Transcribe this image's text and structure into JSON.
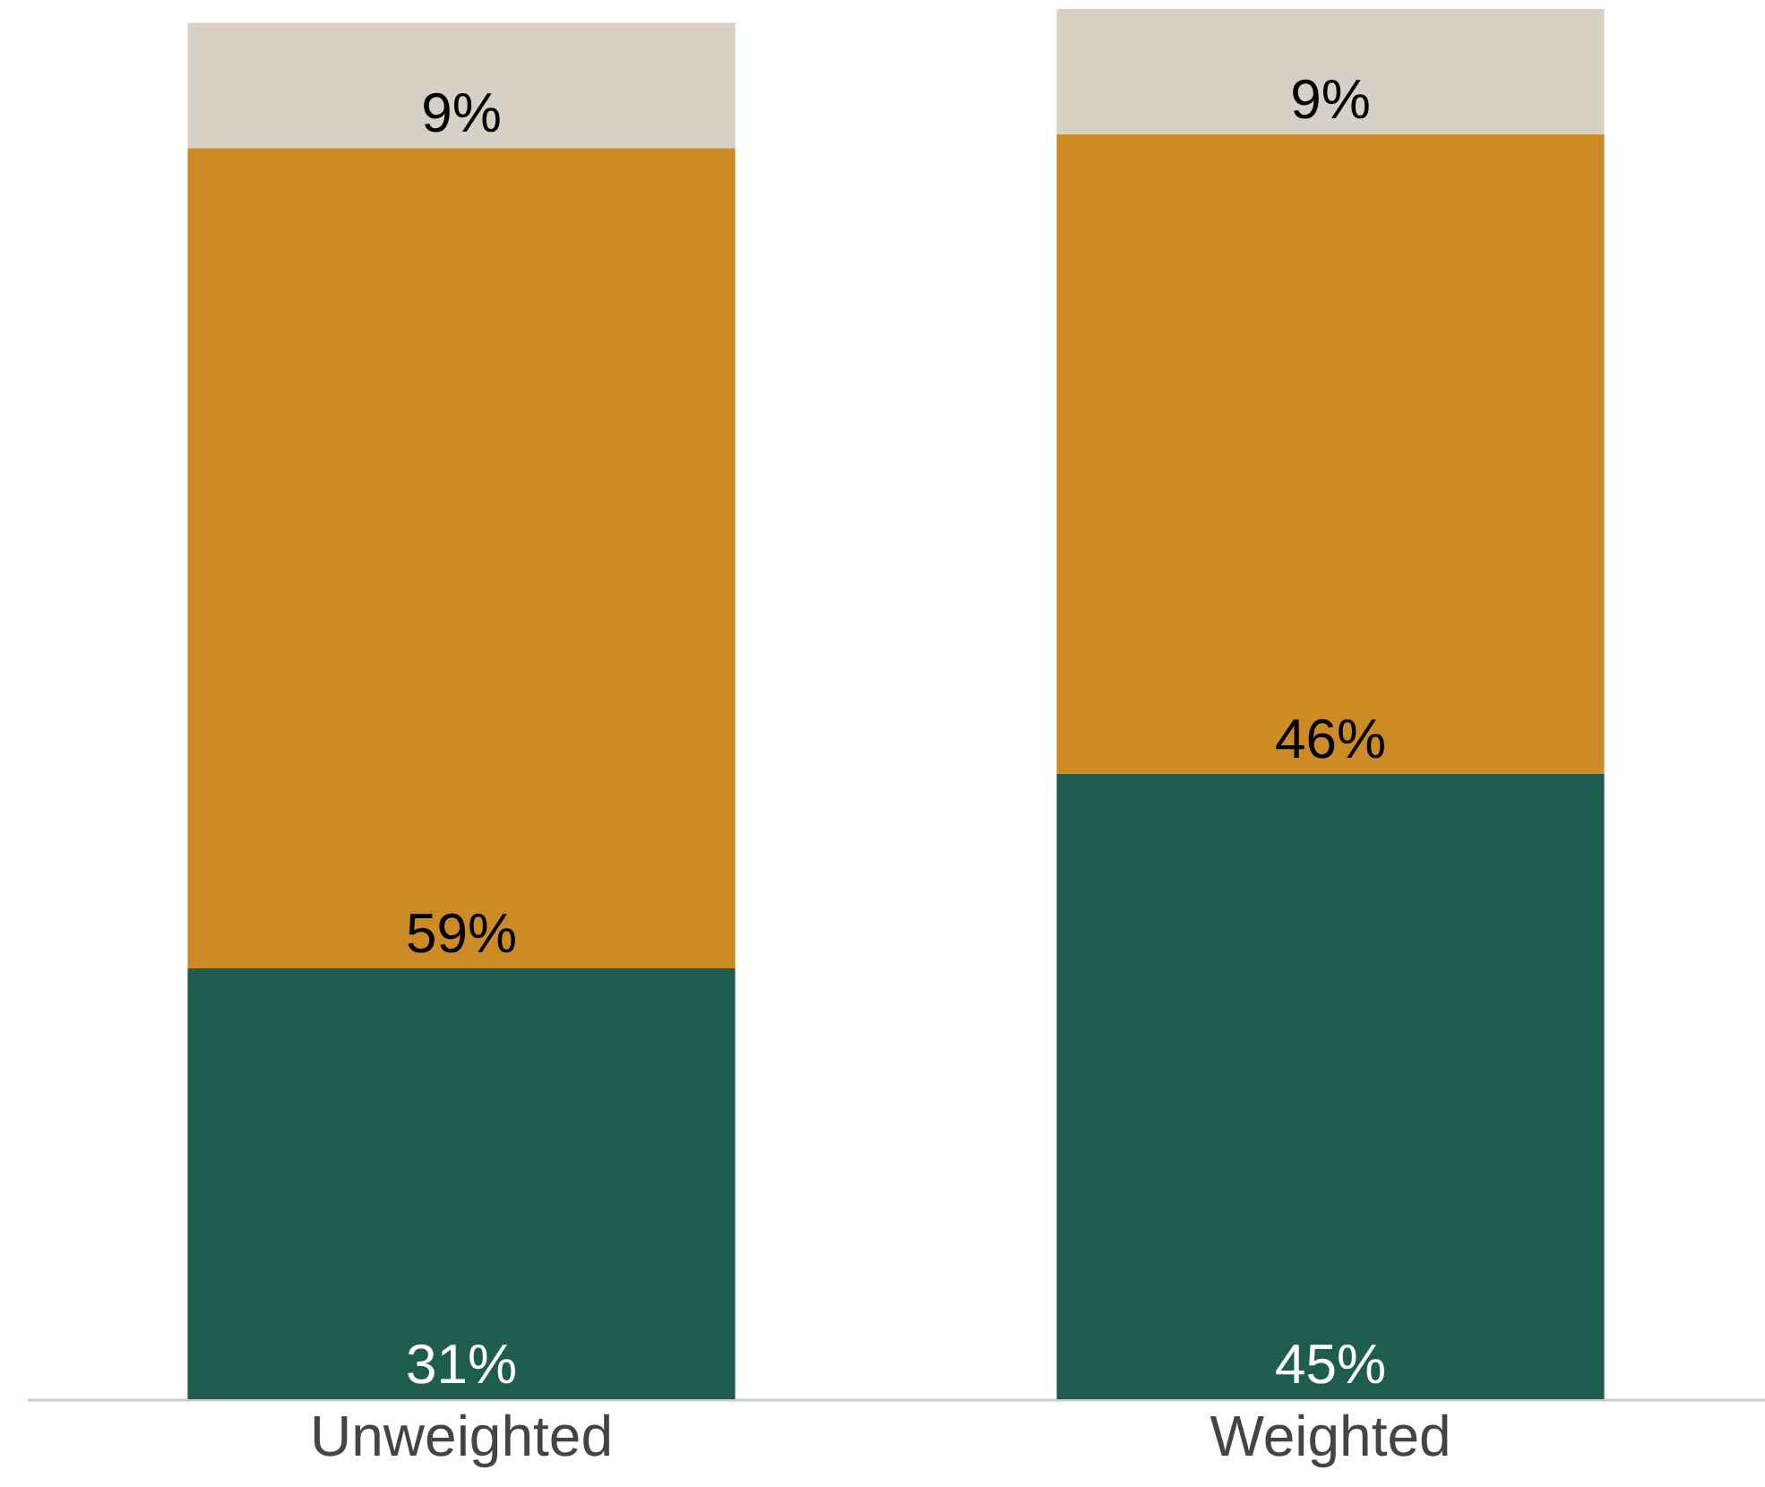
{
  "chart_data": {
    "type": "bar",
    "stacked": true,
    "categories": [
      "Unweighted",
      "Weighted"
    ],
    "ylim": [
      0,
      100
    ],
    "tick_labels": "x",
    "grid": false,
    "legend": false,
    "series": [
      {
        "color": "#1e5c50",
        "values": [
          31,
          45
        ],
        "value_labels": [
          "31%",
          "45%"
        ]
      },
      {
        "color": "#cd8b25",
        "values": [
          59,
          46
        ],
        "value_labels": [
          "59%",
          "46%"
        ]
      },
      {
        "color": "#d6d0c5",
        "values": [
          9,
          9
        ],
        "value_labels": [
          "9%",
          "9%"
        ]
      }
    ]
  }
}
